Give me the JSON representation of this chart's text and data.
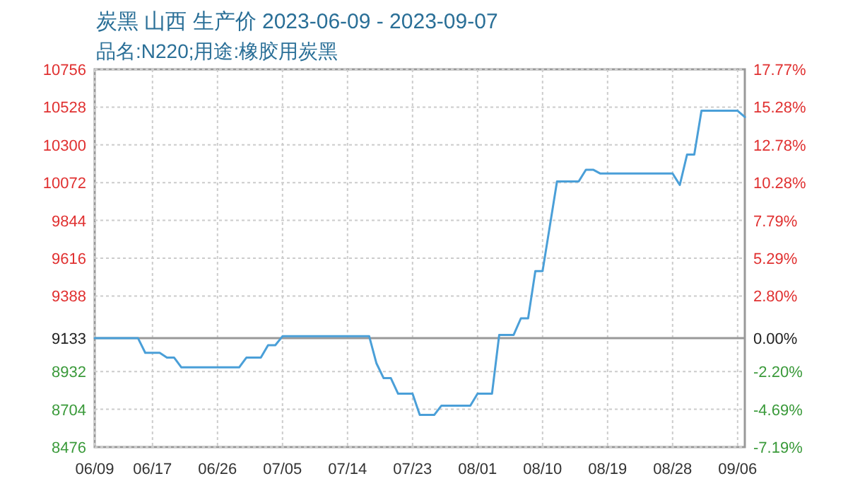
{
  "chart_data": {
    "type": "line",
    "title": "炭黑 山西 生产价 2023-06-09 - 2023-09-07",
    "subtitle": "品名:N220;用途:橡胶用炭黑",
    "x": [
      "2023-06-09",
      "2023-06-15",
      "2023-06-16",
      "2023-06-18",
      "2023-06-19",
      "2023-06-20",
      "2023-06-21",
      "2023-06-29",
      "2023-06-30",
      "2023-07-02",
      "2023-07-03",
      "2023-07-04",
      "2023-07-05",
      "2023-07-17",
      "2023-07-18",
      "2023-07-19",
      "2023-07-20",
      "2023-07-21",
      "2023-07-23",
      "2023-07-24",
      "2023-07-26",
      "2023-07-27",
      "2023-07-31",
      "2023-08-01",
      "2023-08-03",
      "2023-08-04",
      "2023-08-06",
      "2023-08-07",
      "2023-08-08",
      "2023-08-09",
      "2023-08-10",
      "2023-08-11",
      "2023-08-12",
      "2023-08-15",
      "2023-08-16",
      "2023-08-17",
      "2023-08-18",
      "2023-08-28",
      "2023-08-29",
      "2023-08-30",
      "2023-08-31",
      "2023-09-01",
      "2023-09-06",
      "2023-09-07"
    ],
    "series": [
      {
        "color": "#4a9fd8",
        "values": [
          9133,
          9133,
          9045,
          9045,
          9016,
          9016,
          8957,
          8957,
          9016,
          9016,
          9091,
          9091,
          9145,
          9145,
          8982,
          8892,
          8892,
          8798,
          8798,
          8670,
          8670,
          8726,
          8726,
          8798,
          8798,
          9153,
          9153,
          9253,
          9253,
          9538,
          9538,
          9808,
          10079,
          10079,
          10150,
          10150,
          10127,
          10127,
          10058,
          10241,
          10241,
          10506,
          10506,
          10468
        ]
      }
    ],
    "xlim": [
      "2023-06-09",
      "2023-09-07"
    ],
    "xticks": [
      {
        "value": "2023-06-09",
        "label": "06/09"
      },
      {
        "value": "2023-06-17",
        "label": "06/17"
      },
      {
        "value": "2023-06-26",
        "label": "06/26"
      },
      {
        "value": "2023-07-05",
        "label": "07/05"
      },
      {
        "value": "2023-07-14",
        "label": "07/14"
      },
      {
        "value": "2023-07-23",
        "label": "07/23"
      },
      {
        "value": "2023-08-01",
        "label": "08/01"
      },
      {
        "value": "2023-08-10",
        "label": "08/10"
      },
      {
        "value": "2023-08-19",
        "label": "08/19"
      },
      {
        "value": "2023-08-28",
        "label": "08/28"
      },
      {
        "value": "2023-09-06",
        "label": "09/06"
      }
    ],
    "ylim": [
      8476,
      10756
    ],
    "yticks": [
      8476,
      8704,
      8932,
      9133,
      9388,
      9616,
      9844,
      10072,
      10300,
      10528,
      10756
    ],
    "y2lim": [
      -7.19,
      17.77
    ],
    "y2ticks": [
      {
        "value": -7.19,
        "label": "-7.19%"
      },
      {
        "value": -4.69,
        "label": "-4.69%"
      },
      {
        "value": -2.2,
        "label": "-2.20%"
      },
      {
        "value": 0,
        "label": "0.00%"
      },
      {
        "value": 2.8,
        "label": "2.80%"
      },
      {
        "value": 5.29,
        "label": "5.29%"
      },
      {
        "value": 7.79,
        "label": "7.79%"
      },
      {
        "value": 10.28,
        "label": "10.28%"
      },
      {
        "value": 12.78,
        "label": "12.78%"
      },
      {
        "value": 15.28,
        "label": "15.28%"
      },
      {
        "value": 17.77,
        "label": "17.77%"
      }
    ],
    "ref_lines": [
      {
        "axis": "y",
        "value": 9133,
        "color": "#999999"
      }
    ],
    "grid": true,
    "marker": "none",
    "line_style": "solid"
  }
}
